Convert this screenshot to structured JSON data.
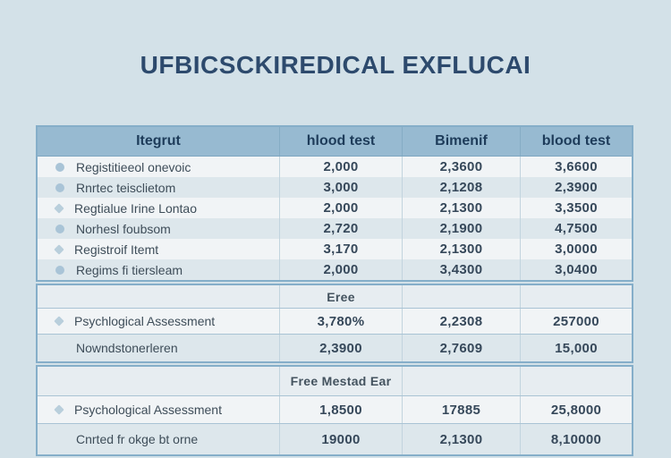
{
  "title": "UFBICSCKIREDICAL EXFLUCAI",
  "table": {
    "headers": [
      "Itegrut",
      "hlood test",
      "Bimenif",
      "blood test"
    ],
    "sections": [
      {
        "rows": [
          {
            "icon": "dot",
            "label": "Registitieeol onevoic",
            "values": [
              "2,000",
              "2,3600",
              "3,6600"
            ]
          },
          {
            "icon": "dot",
            "label": "Rnrtec teisclietom",
            "values": [
              "3,000",
              "2,1208",
              "2,3900"
            ]
          },
          {
            "icon": "arrow",
            "label": "Regtialue Irine Lontao",
            "values": [
              "2,000",
              "2,1300",
              "3,3500"
            ]
          },
          {
            "icon": "dot",
            "label": "Norhesl foubsom",
            "values": [
              "2,720",
              "2,1900",
              "4,7500"
            ]
          },
          {
            "icon": "arrow",
            "label": "Registroif Itemt",
            "values": [
              "3,170",
              "2,1300",
              "3,0000"
            ]
          },
          {
            "icon": "dot",
            "label": "Regims fi tiersleam",
            "values": [
              "2,000",
              "3,4300",
              "3,0400"
            ]
          }
        ]
      },
      {
        "label": "Eree",
        "rows": [
          {
            "icon": "arrow",
            "label": "Psychlogical Assessment",
            "values": [
              "3,780%",
              "2,2308",
              "257000"
            ]
          },
          {
            "icon": "none",
            "label": "Nowndstonerleren",
            "values": [
              "2,3900",
              "2,7609",
              "15,000"
            ]
          }
        ]
      },
      {
        "label": "Free Mestad Ear",
        "rows": [
          {
            "icon": "arrow",
            "label": "Psychological Assessment",
            "values": [
              "1,8500",
              "17885",
              "25,8000"
            ]
          },
          {
            "icon": "none",
            "label": "Cnrted fr okge bt orne",
            "values": [
              "19000",
              "2,1300",
              "8,10000"
            ]
          }
        ]
      }
    ]
  },
  "colors": {
    "page_bg": "#d3e1e8",
    "header_bg": "#97bad1",
    "header_text": "#1e3c5a",
    "row_light": "#f1f4f6",
    "row_dark": "#dde7ec",
    "section_bg": "#e7edf1",
    "block_border": "#85aec9",
    "title_text": "#2d4a6d",
    "bullet_icon": "#a9c4d7"
  }
}
